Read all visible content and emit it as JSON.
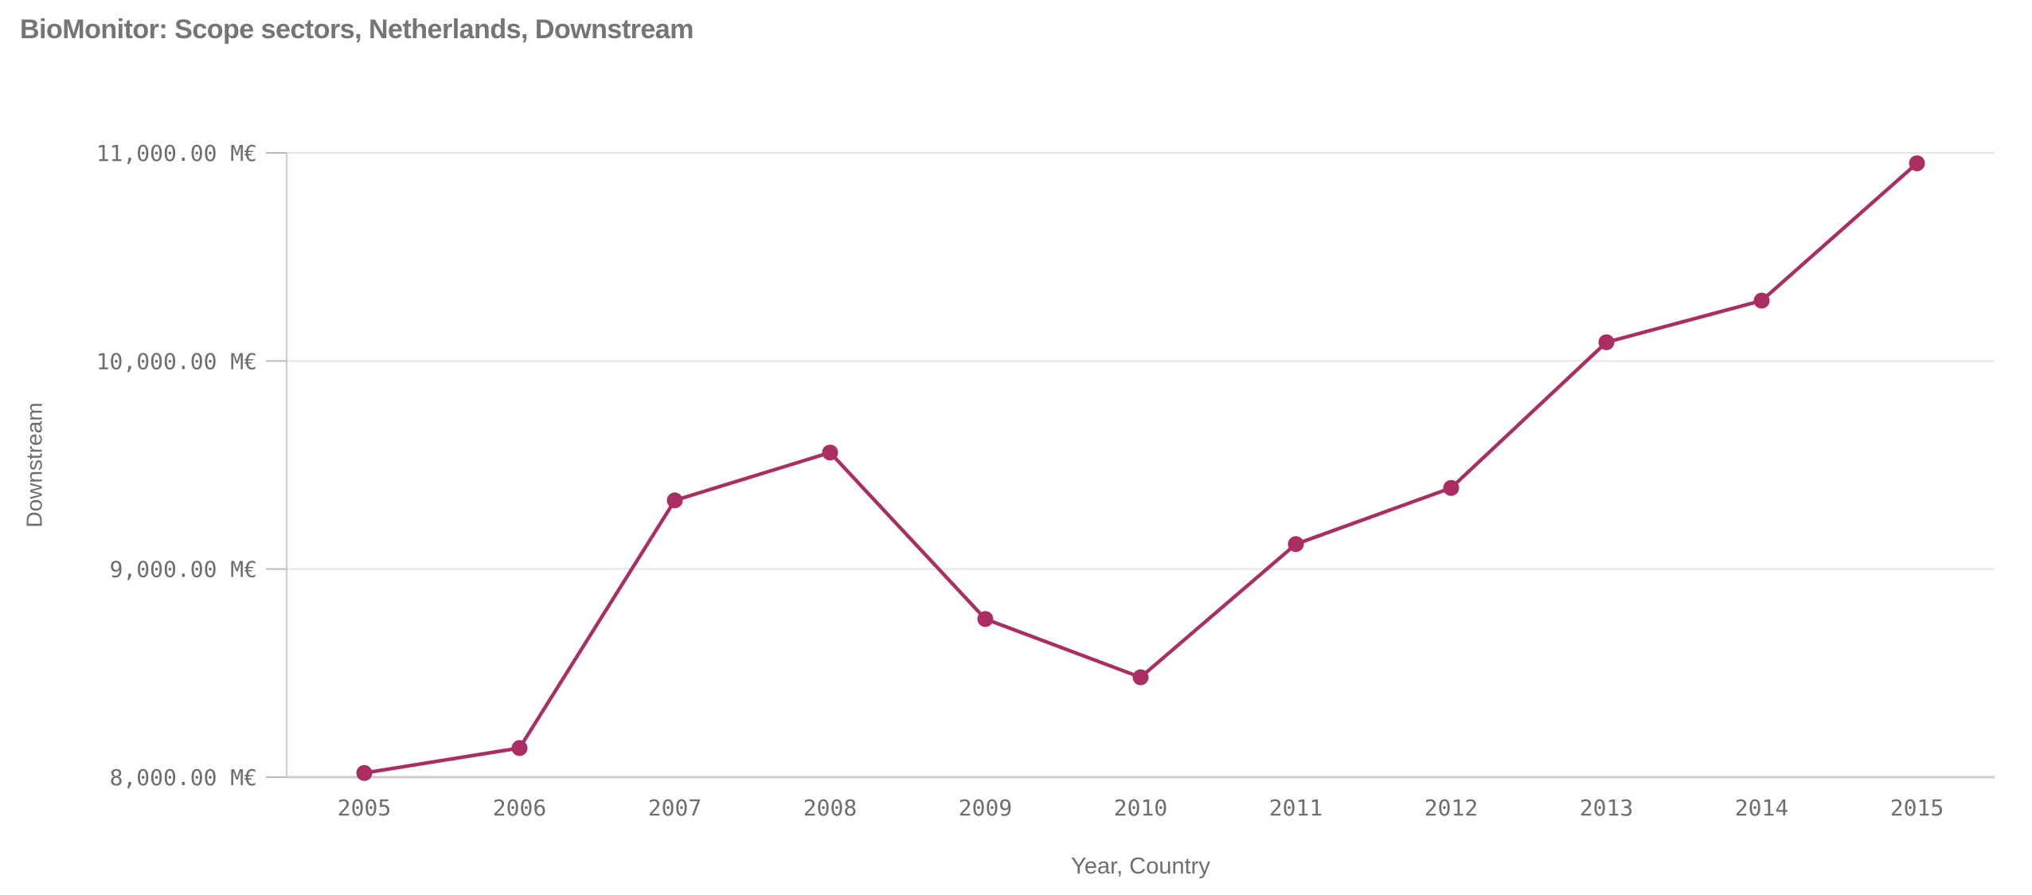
{
  "header": {
    "title": "BioMonitor: Scope sectors, Netherlands, Downstream"
  },
  "axes": {
    "x_title": "Year, Country",
    "y_title": "Downstream"
  },
  "chart_data": {
    "type": "line",
    "title": "BioMonitor: Scope sectors, Netherlands, Downstream",
    "xlabel": "Year, Country",
    "ylabel": "Downstream",
    "unit": "M€",
    "categories": [
      "2005",
      "2006",
      "2007",
      "2008",
      "2009",
      "2010",
      "2011",
      "2012",
      "2013",
      "2014",
      "2015"
    ],
    "series": [
      {
        "name": "Downstream",
        "values": [
          8020,
          8140,
          9330,
          9560,
          8760,
          8480,
          9120,
          9390,
          10090,
          10290,
          10950
        ]
      }
    ],
    "ylim": [
      8000,
      11000
    ],
    "y_ticks": [
      {
        "value": 11000,
        "label": "11,000.00 M€"
      },
      {
        "value": 10000,
        "label": "10,000.00 M€"
      },
      {
        "value": 9000,
        "label": "9,000.00 M€"
      },
      {
        "value": 8000,
        "label": "8,000.00 M€"
      }
    ],
    "grid": "horizontal",
    "legend": "none"
  },
  "colors": {
    "background": "#ffffff",
    "title": "#757575",
    "label": "#6e6e6e",
    "grid": "#e4e4e4",
    "axis": "#cccccc",
    "tick": "#bbbbbb",
    "series": "#ab2e62"
  }
}
